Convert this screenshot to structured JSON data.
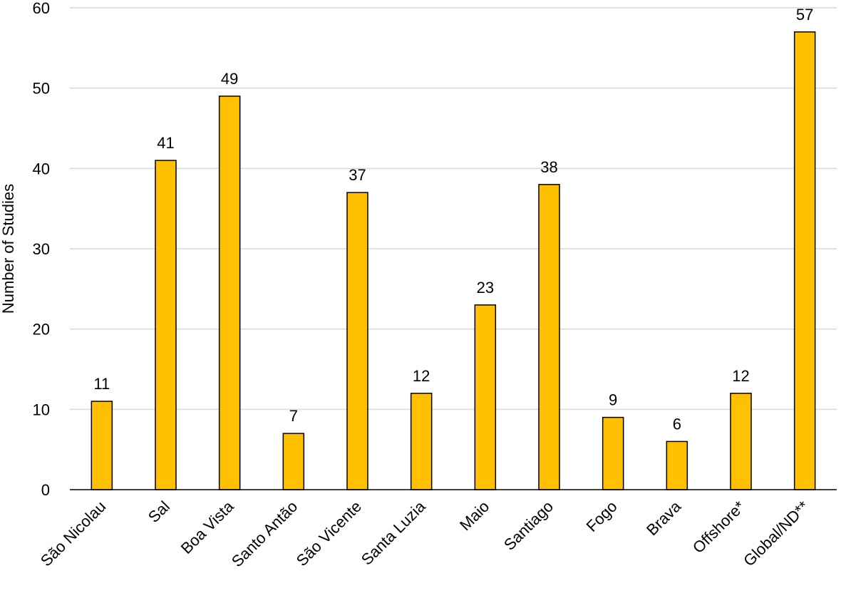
{
  "chart_data": {
    "type": "bar",
    "title": "",
    "xlabel": "",
    "ylabel": "Number of Studies",
    "ylim": [
      0,
      60
    ],
    "yticks": [
      0,
      10,
      20,
      30,
      40,
      50,
      60
    ],
    "grid": true,
    "categories": [
      "São Nicolau",
      "Sal",
      "Boa Vista",
      "Santo Antão",
      "São Vicente",
      "Santa Luzia",
      "Maio",
      "Santiago",
      "Fogo",
      "Brava",
      "Offshore*",
      "Global/ND**"
    ],
    "values": [
      11,
      41,
      49,
      7,
      37,
      12,
      23,
      38,
      9,
      6,
      12,
      57
    ],
    "bar_color": "#FFC000",
    "bar_edge_color": "#000000",
    "grid_color": "#D9D9D9"
  }
}
